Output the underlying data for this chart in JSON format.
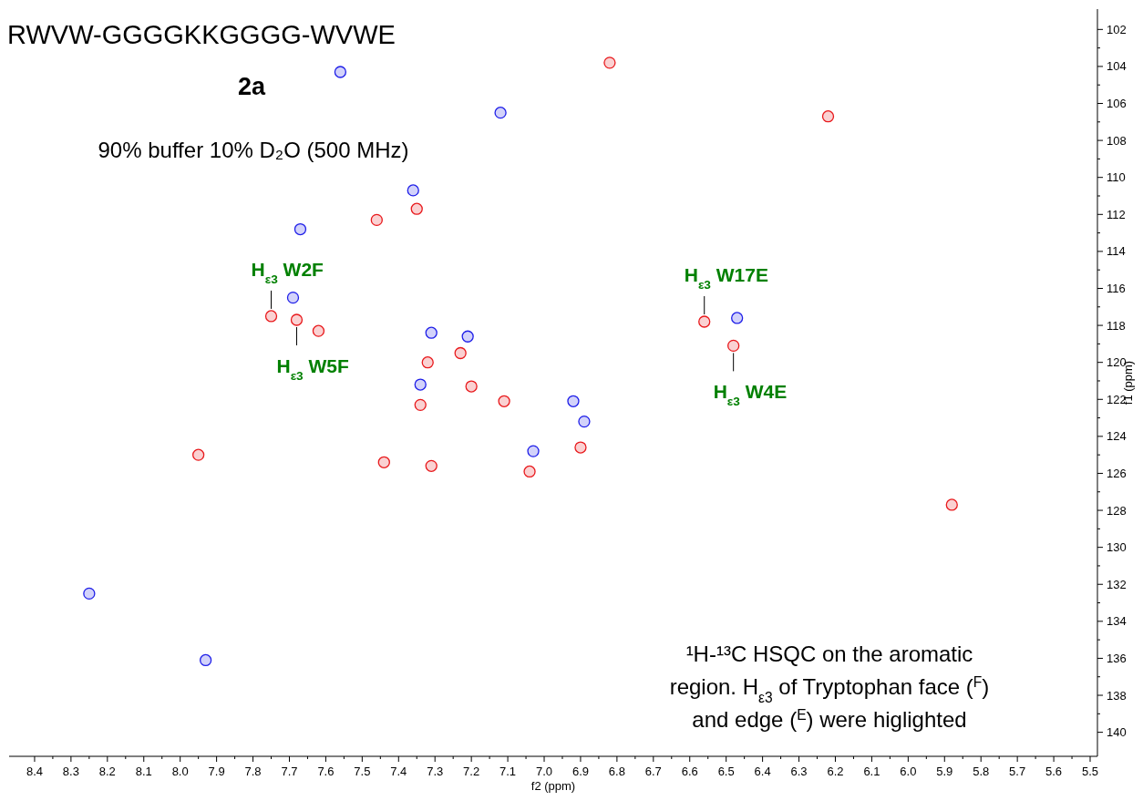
{
  "chart_data": {
    "type": "scatter",
    "title": "RWVW-GGGGKKGGGG-WVWE",
    "subtitle": "2a",
    "xlabel": "f2 (ppm)",
    "ylabel": "f1 (ppm)",
    "xlim": [
      8.47,
      5.48
    ],
    "ylim": [
      141.3,
      100.9
    ],
    "xticks": [
      8.4,
      8.3,
      8.2,
      8.1,
      {
        "value": 8,
        "label": "8.0"
      },
      7.9,
      7.8,
      7.7,
      7.6,
      7.5,
      7.4,
      7.3,
      7.2,
      7.1,
      {
        "value": 7,
        "label": "7.0"
      },
      6.9,
      6.8,
      6.7,
      6.6,
      6.5,
      6.4,
      6.3,
      6.2,
      6.1,
      {
        "value": 6,
        "label": "6.0"
      },
      5.9,
      5.8,
      5.7,
      5.6,
      5.5
    ],
    "yticks": [
      102,
      104,
      106,
      108,
      110,
      112,
      114,
      116,
      118,
      120,
      122,
      124,
      126,
      128,
      130,
      132,
      134,
      136,
      138,
      140
    ],
    "marker": "circle",
    "grid": false,
    "series": [
      {
        "color": "#e8191c",
        "x": [
          6.82,
          6.22,
          7.46,
          7.35,
          7.75,
          7.68,
          7.62,
          6.56,
          6.48,
          7.32,
          7.23,
          7.2,
          7.11,
          7.34,
          6.9,
          7.04,
          7.44,
          7.95,
          5.88,
          7.31
        ],
        "values": [
          103.8,
          106.7,
          112.3,
          111.7,
          117.5,
          117.7,
          118.3,
          117.8,
          119.1,
          120.0,
          119.5,
          121.3,
          122.1,
          122.3,
          124.6,
          125.9,
          125.4,
          125.0,
          127.7,
          125.6
        ]
      },
      {
        "color": "#1f1fe8",
        "x": [
          7.56,
          7.12,
          7.67,
          7.36,
          7.69,
          7.31,
          7.21,
          6.47,
          7.34,
          6.92,
          6.89,
          7.03,
          8.25,
          7.93
        ],
        "values": [
          104.3,
          106.5,
          112.8,
          110.7,
          116.5,
          118.4,
          118.6,
          117.6,
          121.2,
          122.1,
          123.2,
          124.8,
          132.5,
          136.1
        ]
      }
    ],
    "annotations": [
      "90% buffer 10% D₂O (500 MHz)",
      "¹H-¹³C HSQC on the aromatic\nregion. H$_{ε3}$ of Tryptophan face ($^{F}$)\nand edge ($^{E}$) were higlighted",
      {
        "text": "H$_{ε3}$ W2F",
        "x": 7.75,
        "y": 117.5
      },
      {
        "text": "H$_{ε3}$ W5F",
        "x": 7.68,
        "y": 117.7
      },
      {
        "text": "H$_{ε3}$ W17E",
        "x": 6.56,
        "y": 117.8
      },
      {
        "text": "H$_{ε3}$ W4E",
        "x": 6.48,
        "y": 119.1
      }
    ]
  }
}
